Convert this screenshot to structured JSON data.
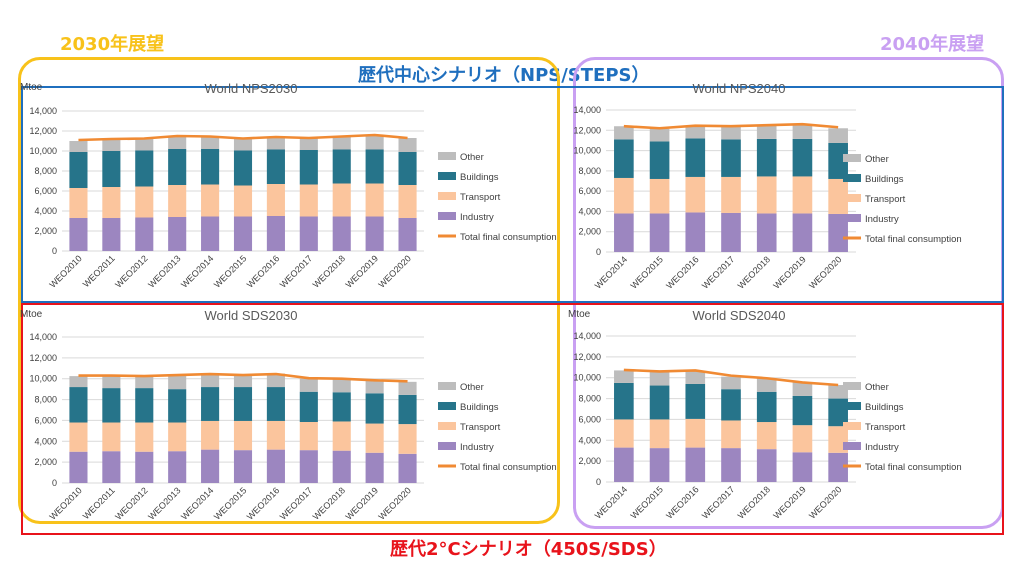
{
  "headings": {
    "h2030": "2030年展望",
    "h2040": "2040年展望",
    "steps": "歴代中心シナリオ（NPS/STEPS）",
    "sds": "歴代2°Cシナリオ（450S/SDS）"
  },
  "colors": {
    "h2030": "#f8c21a",
    "h2040": "#c9a0f2",
    "steps": "#1f6fbe",
    "sds": "#e8131b",
    "industry": "#9c86c0",
    "transport": "#fbc59d",
    "buildings": "#26748a",
    "other": "#bdbdbd",
    "total": "#f08a33",
    "grid": "#d9d9d9"
  },
  "chart_data": [
    {
      "type": "bar",
      "stacked": true,
      "title": "World NPS2030",
      "ylabel": "Mtoe",
      "ylim": [
        0,
        14000
      ],
      "yticks": [
        "0",
        "2,000",
        "4,000",
        "6,000",
        "8,000",
        "10,000",
        "12,000",
        "14,000"
      ],
      "grid": true,
      "legend_position": "right",
      "categories": [
        "WEO2010",
        "WEO2011",
        "WEO2012",
        "WEO2013",
        "WEO2014",
        "WEO2015",
        "WEO2016",
        "WEO2017",
        "WEO2018",
        "WEO2019",
        "WEO2020"
      ],
      "series": [
        {
          "name": "Industry",
          "values": [
            3300,
            3300,
            3350,
            3400,
            3450,
            3450,
            3500,
            3450,
            3450,
            3450,
            3300
          ]
        },
        {
          "name": "Transport",
          "values": [
            3000,
            3100,
            3100,
            3200,
            3200,
            3100,
            3200,
            3200,
            3300,
            3300,
            3300
          ]
        },
        {
          "name": "Buildings",
          "values": [
            3600,
            3600,
            3600,
            3600,
            3550,
            3500,
            3450,
            3450,
            3400,
            3400,
            3300
          ]
        },
        {
          "name": "Other",
          "values": [
            1100,
            1200,
            1200,
            1300,
            1300,
            1200,
            1250,
            1250,
            1350,
            1450,
            1400
          ]
        }
      ],
      "line": {
        "name": "Total final consumption",
        "values": [
          11100,
          11200,
          11250,
          11500,
          11450,
          11250,
          11400,
          11300,
          11450,
          11600,
          11300
        ]
      }
    },
    {
      "type": "bar",
      "stacked": true,
      "title": "World NPS2040",
      "ylabel": "",
      "ylim": [
        0,
        14000
      ],
      "yticks": [
        "0",
        "2,000",
        "4,000",
        "6,000",
        "8,000",
        "10,000",
        "12,000",
        "14,000"
      ],
      "grid": true,
      "legend_position": "right",
      "categories": [
        "WEO2014",
        "WEO2015",
        "WEO2016",
        "WEO2017",
        "WEO2018",
        "WEO2019",
        "WEO2020"
      ],
      "series": [
        {
          "name": "Industry",
          "values": [
            3800,
            3800,
            3900,
            3850,
            3800,
            3800,
            3750
          ]
        },
        {
          "name": "Transport",
          "values": [
            3500,
            3400,
            3500,
            3550,
            3650,
            3650,
            3450
          ]
        },
        {
          "name": "Buildings",
          "values": [
            3800,
            3700,
            3800,
            3700,
            3700,
            3700,
            3550
          ]
        },
        {
          "name": "Other",
          "values": [
            1300,
            1250,
            1250,
            1350,
            1350,
            1450,
            1450
          ]
        }
      ],
      "line": {
        "name": "Total final consumption",
        "values": [
          12400,
          12200,
          12450,
          12400,
          12500,
          12600,
          12300
        ]
      }
    },
    {
      "type": "bar",
      "stacked": true,
      "title": "World SDS2030",
      "ylabel": "Mtoe",
      "ylim": [
        0,
        14000
      ],
      "yticks": [
        "0",
        "2,000",
        "4,000",
        "6,000",
        "8,000",
        "10,000",
        "12,000",
        "14,000"
      ],
      "grid": true,
      "legend_position": "right",
      "categories": [
        "WEO2010",
        "WEO2011",
        "WEO2012",
        "WEO2013",
        "WEO2014",
        "WEO2015",
        "WEO2016",
        "WEO2017",
        "WEO2018",
        "WEO2019",
        "WEO2020"
      ],
      "series": [
        {
          "name": "Industry",
          "values": [
            3000,
            3050,
            3000,
            3050,
            3200,
            3150,
            3200,
            3150,
            3100,
            2900,
            2800
          ]
        },
        {
          "name": "Transport",
          "values": [
            2800,
            2750,
            2800,
            2750,
            2750,
            2800,
            2750,
            2700,
            2800,
            2800,
            2850
          ]
        },
        {
          "name": "Buildings",
          "values": [
            3400,
            3300,
            3300,
            3200,
            3250,
            3250,
            3250,
            2900,
            2800,
            2900,
            2800
          ]
        },
        {
          "name": "Other",
          "values": [
            1050,
            1150,
            1150,
            1300,
            1350,
            1250,
            1300,
            1250,
            1300,
            1200,
            1250
          ]
        }
      ],
      "line": {
        "name": "Total final consumption",
        "values": [
          10300,
          10300,
          10250,
          10350,
          10450,
          10350,
          10450,
          10050,
          10000,
          9850,
          9750
        ]
      }
    },
    {
      "type": "bar",
      "stacked": true,
      "title": "World SDS2040",
      "ylabel": "Mtoe",
      "ylim": [
        0,
        14000
      ],
      "yticks": [
        "0",
        "2,000",
        "4,000",
        "6,000",
        "8,000",
        "10,000",
        "12,000",
        "14,000"
      ],
      "grid": true,
      "legend_position": "right",
      "categories": [
        "WEO2014",
        "WEO2015",
        "WEO2016",
        "WEO2017",
        "WEO2018",
        "WEO2019",
        "WEO2020"
      ],
      "series": [
        {
          "name": "Industry",
          "values": [
            3300,
            3250,
            3300,
            3250,
            3150,
            2850,
            2800
          ]
        },
        {
          "name": "Transport",
          "values": [
            2700,
            2750,
            2750,
            2650,
            2600,
            2600,
            2550
          ]
        },
        {
          "name": "Buildings",
          "values": [
            3500,
            3250,
            3350,
            3000,
            2900,
            2800,
            2650
          ]
        },
        {
          "name": "Other",
          "values": [
            1200,
            1300,
            1200,
            1200,
            1300,
            1300,
            1300
          ]
        }
      ],
      "line": {
        "name": "Total final consumption",
        "values": [
          10750,
          10600,
          10700,
          10200,
          9950,
          9550,
          9300
        ]
      }
    }
  ]
}
